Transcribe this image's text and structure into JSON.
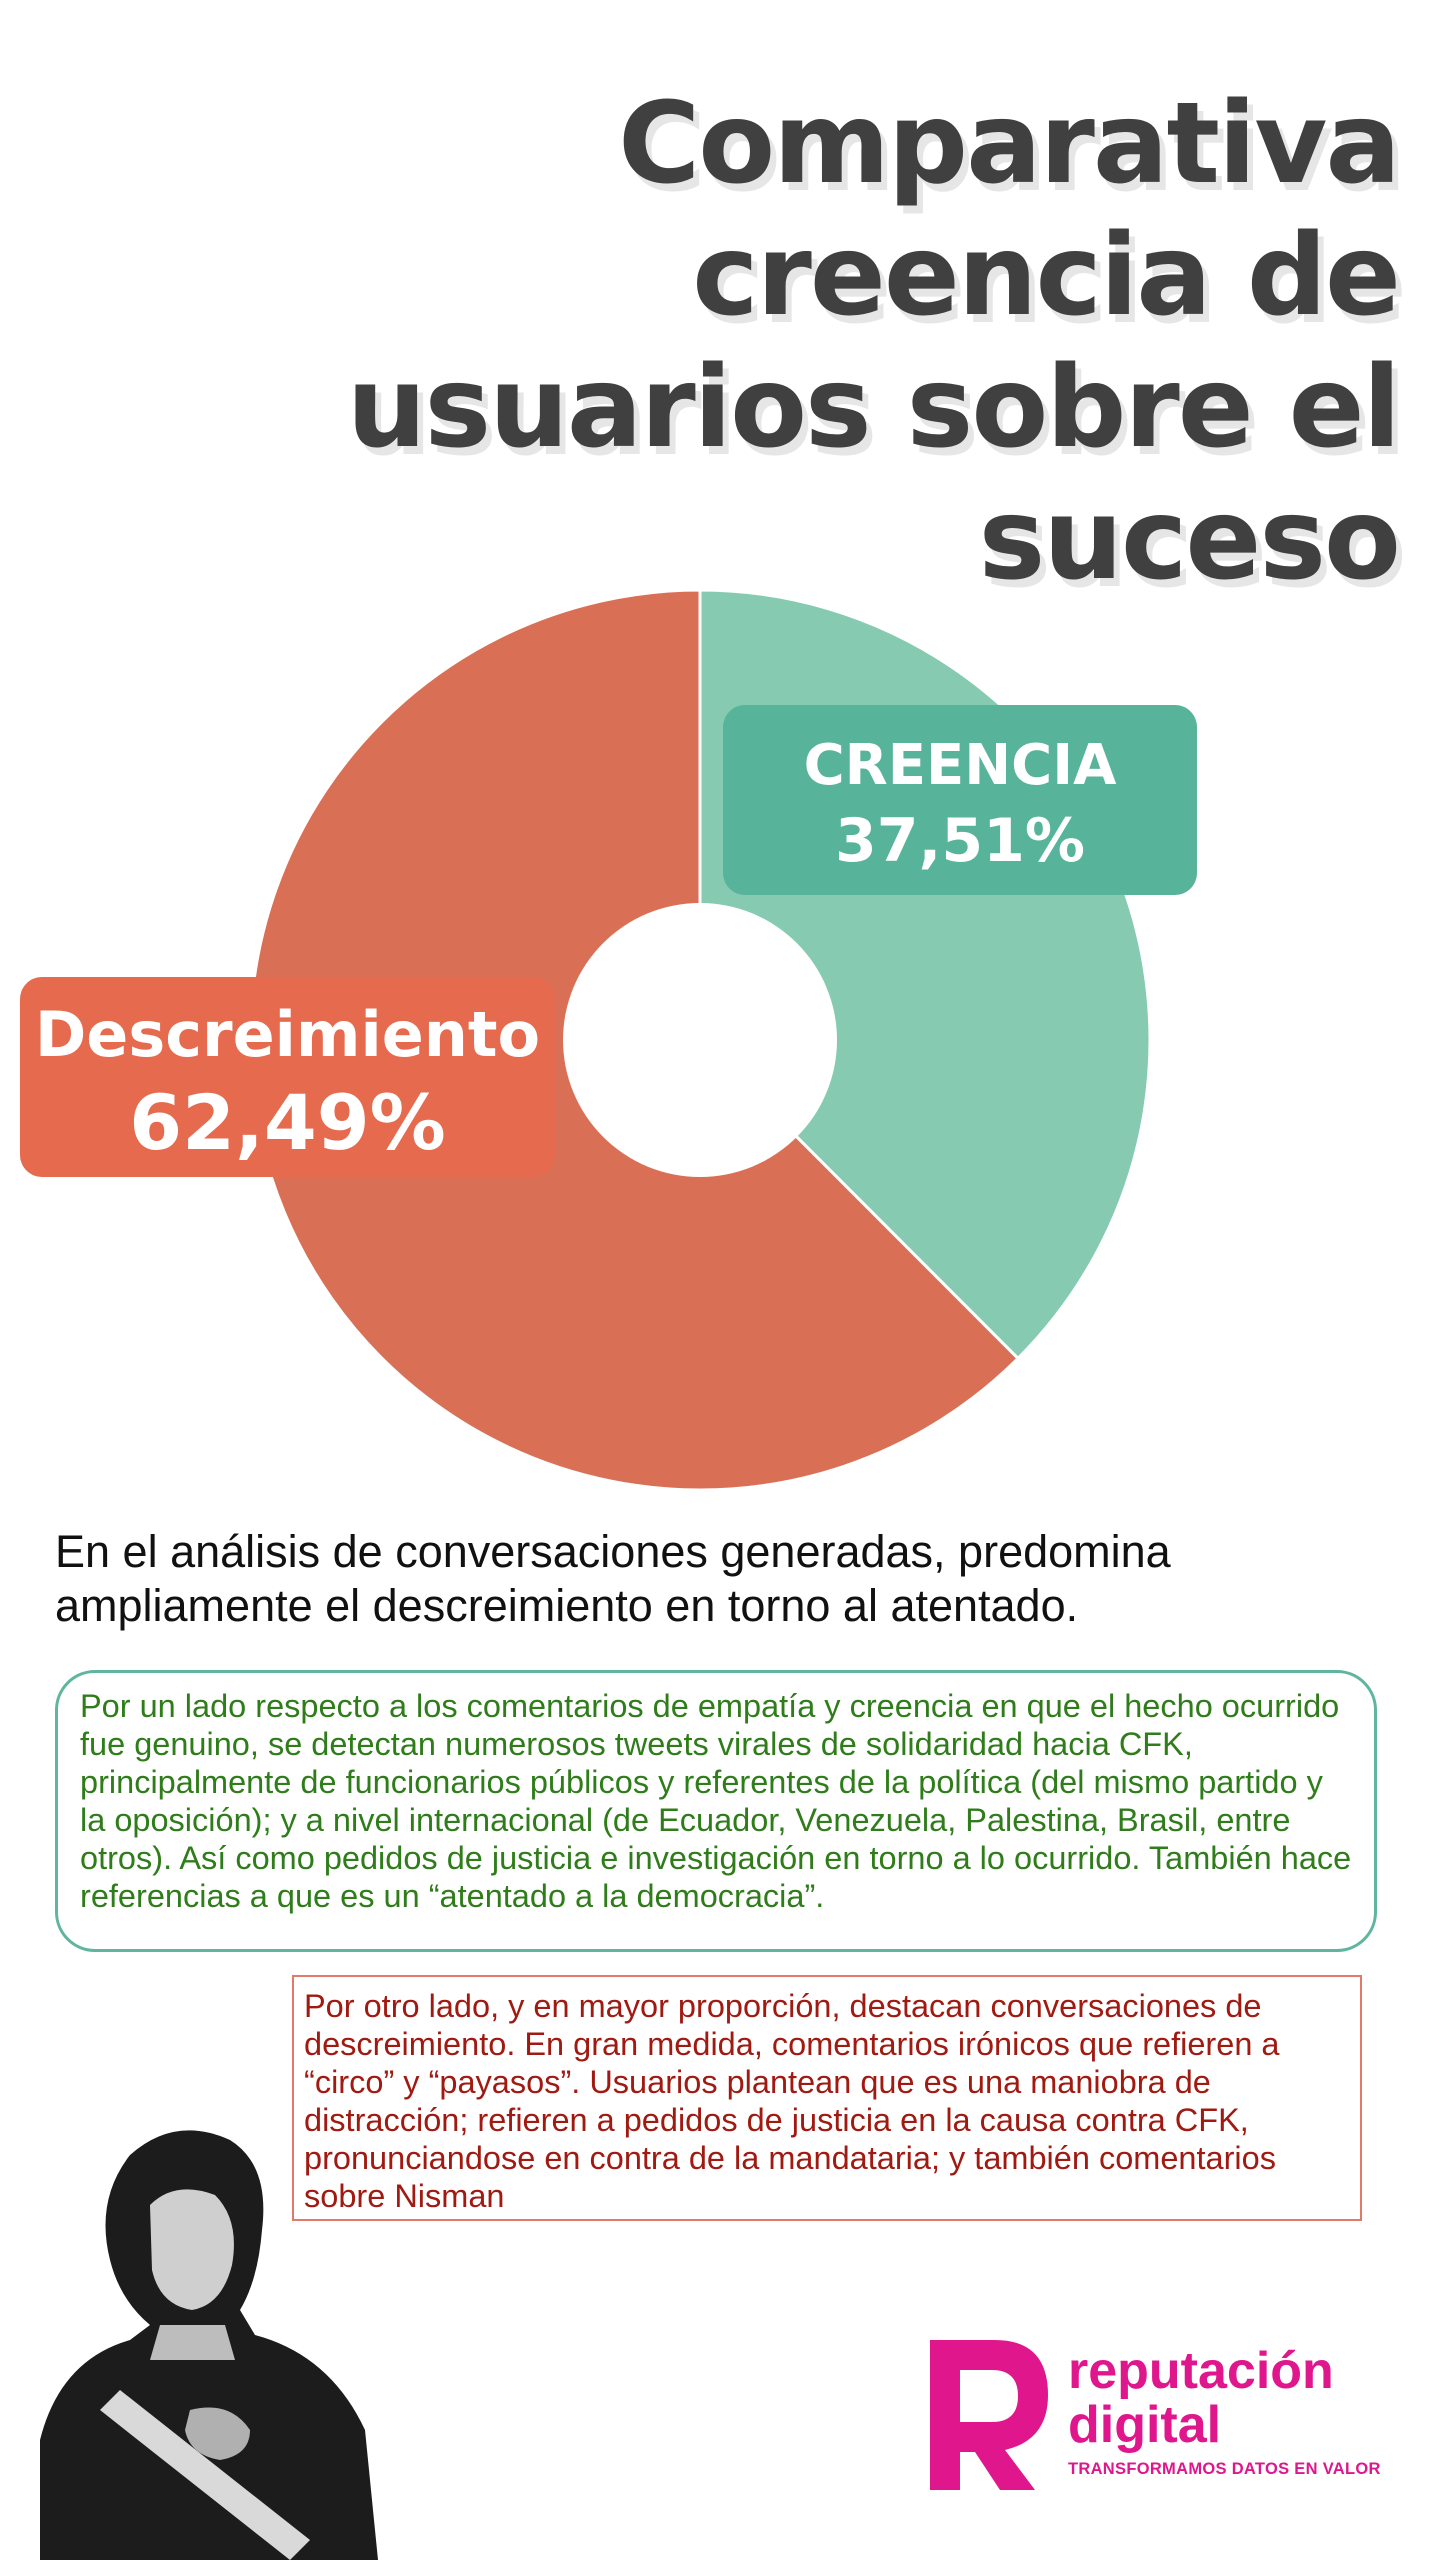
{
  "title": "Comparativa creencia de usuarios sobre el suceso",
  "chart_data": {
    "type": "pie",
    "title": "Comparativa creencia de usuarios sobre el suceso",
    "series": [
      {
        "name": "CREENCIA",
        "value": 37.51,
        "display": "37,51%",
        "color": "#86cbb1",
        "label_color": "#57b399"
      },
      {
        "name": "Descreimiento",
        "value": 62.49,
        "display": "62,49%",
        "color": "#d96f55",
        "label_color": "#e56a4e"
      }
    ],
    "donut_hole": true,
    "legend": "none"
  },
  "summary": "En el análisis de conversaciones generadas, predomina ampliamente el descreimiento en torno al atentado.",
  "paragraph_creencia": "Por un lado respecto a los comentarios de empatía y creencia en que el hecho ocurrido fue genuino, se detectan numerosos tweets virales de solidaridad hacia CFK, principalmente de funcionarios públicos y referentes de la política (del mismo partido y la oposición); y a nivel internacional (de Ecuador, Venezuela, Palestina, Brasil, entre otros). Así como pedidos de justicia e investigación en torno a lo ocurrido. También hace referencias a que es un “atentado a la democracia”.",
  "paragraph_descreimiento": "Por otro lado, y en mayor proporción, destacan conversaciones de descreimiento. En gran medida, comentarios irónicos que refieren a “circo” y “payasos”. Usuarios plantean que es una maniobra de distracción; refieren a pedidos de justicia en la causa contra CFK, pronunciandose en contra de la mandataria; y también comentarios sobre Nisman",
  "logo": {
    "name": "reputación\ndigital",
    "tagline": "TRANSFORMAMOS DATOS EN VALOR",
    "color": "#e0168d"
  },
  "photo": {
    "icon": "portrait-photo"
  }
}
